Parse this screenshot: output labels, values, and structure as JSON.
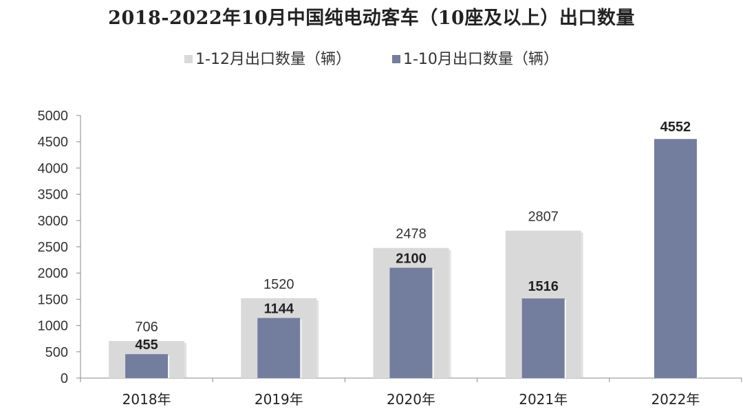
{
  "chart_data": {
    "type": "bar",
    "title": "2018-2022年10月中国纯电动客车（10座及以上）出口数量",
    "categories": [
      "2018年",
      "2019年",
      "2020年",
      "2021年",
      "2022年"
    ],
    "series": [
      {
        "name": "1-12月出口数量（辆）",
        "values": [
          706,
          1520,
          2478,
          2807,
          null
        ],
        "color": "#d9d9d9"
      },
      {
        "name": "1-10月出口数量（辆）",
        "values": [
          455,
          1144,
          2100,
          1516,
          4552
        ],
        "color": "#737d9e"
      }
    ],
    "ylim": [
      0,
      5000
    ],
    "yticks": [
      0,
      500,
      1000,
      1500,
      2000,
      2500,
      3000,
      3500,
      4000,
      4500,
      5000
    ],
    "xlabel": "",
    "ylabel": "",
    "grid": false,
    "legend_position": "top"
  }
}
